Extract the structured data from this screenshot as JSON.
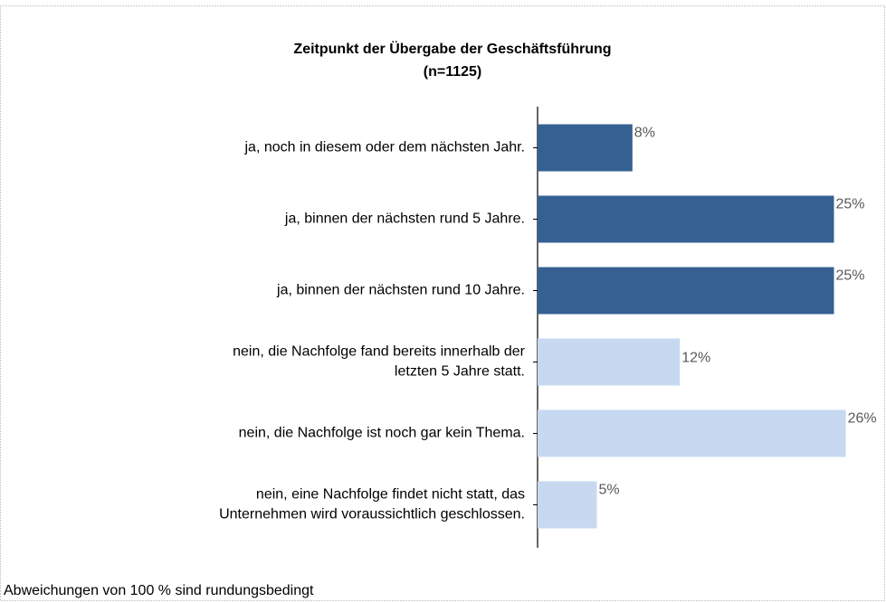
{
  "chart_data": {
    "type": "bar",
    "orientation": "horizontal",
    "title": "Zeitpunkt der Übergabe der Geschäftsführung",
    "subtitle": "(n=1125)",
    "categories": [
      "ja, noch in diesem oder dem nächsten Jahr.",
      "ja, binnen der nächsten rund 5 Jahre.",
      "ja, binnen der nächsten rund 10 Jahre.",
      "nein, die Nachfolge fand bereits innerhalb der\nletzten 5 Jahre statt.",
      "nein, die Nachfolge ist noch gar kein Thema.",
      "nein, eine Nachfolge findet nicht statt, das\nUnternehmen wird voraussichtlich geschlossen."
    ],
    "values": [
      8,
      25,
      25,
      12,
      26,
      5
    ],
    "value_labels": [
      "8%",
      "25%",
      "25%",
      "12%",
      "26%",
      "5%"
    ],
    "colors": [
      "#366092",
      "#366092",
      "#366092",
      "#c6d9f1",
      "#c6d9f1",
      "#c6d9f1"
    ],
    "footnote": "Abweichungen von 100 % sind rundungsbedingt"
  }
}
